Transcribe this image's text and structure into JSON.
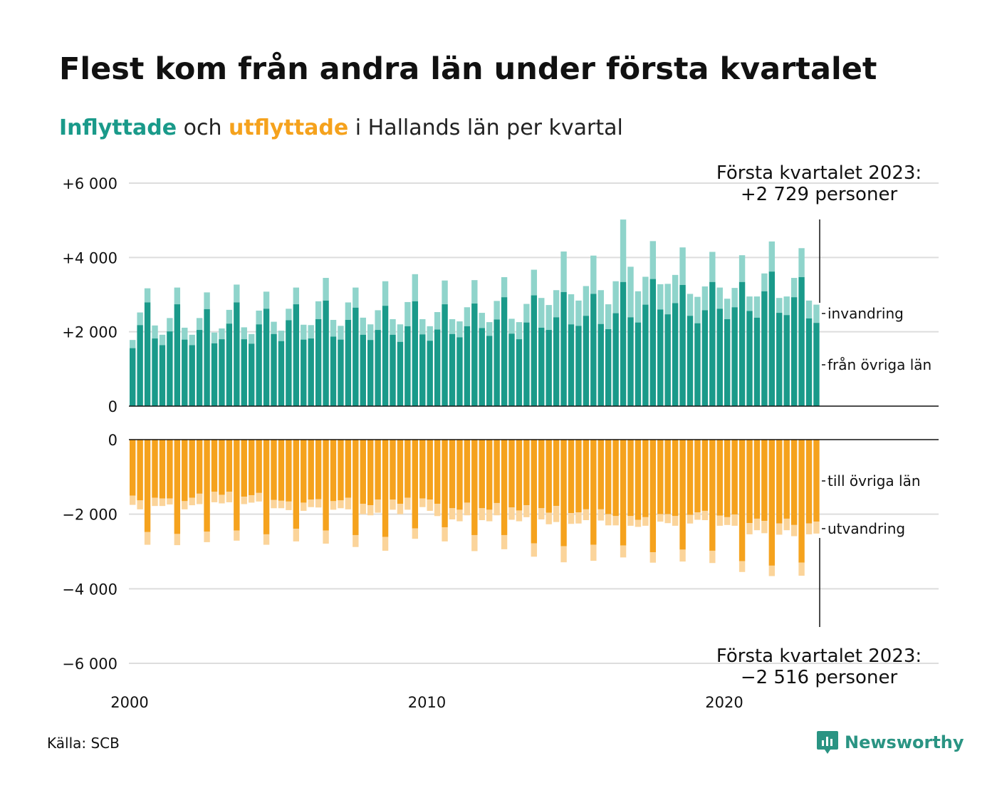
{
  "title": "Flest kom från andra län under första kvartalet",
  "subtitle": {
    "in_word": "Inflyttade",
    "mid": " och ",
    "out_word": "utflyttade",
    "rest": " i Hallands län per kvartal"
  },
  "source": "Källa: SCB",
  "brand": "Newsworthy",
  "colors": {
    "inflyttade_dark": "#1a9a8a",
    "inflyttade_light": "#8fd4cb",
    "utflyttade_dark": "#f5a21d",
    "utflyttade_light": "#fbd49a",
    "grid": "#dddddd",
    "brand": "#2a9483"
  },
  "chart_data": {
    "type": "bar",
    "stacked": true,
    "x_start": 2000,
    "x_end": 2023,
    "quarters_per_year": 4,
    "x_ticks": [
      "2000",
      "2010",
      "2020"
    ],
    "top_panel": {
      "ylim": [
        0,
        6000
      ],
      "y_ticks": [
        "0",
        "+2 000",
        "+4 000",
        "+6 000"
      ],
      "series": [
        {
          "name": "från övriga län",
          "values": [
            1560,
            2180,
            2790,
            1820,
            1640,
            2010,
            2740,
            1790,
            1640,
            2050,
            2610,
            1690,
            1800,
            2220,
            2790,
            1800,
            1680,
            2200,
            2620,
            1940,
            1750,
            2310,
            2740,
            1790,
            1820,
            2340,
            2840,
            1870,
            1790,
            2320,
            2650,
            1920,
            1780,
            2050,
            2700,
            1920,
            1730,
            2150,
            2820,
            1930,
            1760,
            2060,
            2740,
            1940,
            1850,
            2150,
            2760,
            2100,
            1890,
            2330,
            2930,
            1950,
            1800,
            2250,
            2980,
            2110,
            2050,
            2390,
            3070,
            2200,
            2160,
            2430,
            3020,
            2210,
            2070,
            2500,
            3340,
            2390,
            2250,
            2730,
            3420,
            2600,
            2470,
            2770,
            3260,
            2430,
            2230,
            2580,
            3340,
            2620,
            2340,
            2660,
            3340,
            2560,
            2380,
            3090,
            3620,
            2510,
            2450,
            2930,
            3470,
            2360,
            2240
          ]
        },
        {
          "name": "invandring",
          "values": [
            220,
            340,
            380,
            350,
            280,
            360,
            450,
            320,
            280,
            320,
            450,
            290,
            290,
            370,
            480,
            320,
            260,
            370,
            460,
            330,
            280,
            310,
            450,
            400,
            360,
            480,
            610,
            450,
            370,
            470,
            540,
            460,
            420,
            530,
            660,
            420,
            470,
            650,
            730,
            410,
            390,
            470,
            640,
            400,
            430,
            510,
            630,
            410,
            370,
            500,
            540,
            400,
            460,
            500,
            690,
            800,
            670,
            730,
            1090,
            810,
            680,
            800,
            1030,
            910,
            670,
            860,
            1680,
            1360,
            840,
            750,
            1020,
            680,
            820,
            760,
            1010,
            590,
            710,
            640,
            810,
            570,
            550,
            520,
            720,
            390,
            570,
            480,
            810,
            400,
            500,
            520,
            780,
            480,
            490
          ]
        }
      ],
      "annotation": [
        "Första kvartalet 2023:",
        "+2 729 personer"
      ]
    },
    "bottom_panel": {
      "ylim": [
        -6000,
        0
      ],
      "y_ticks": [
        "0",
        "−2 000",
        "−4 000",
        "−6 000"
      ],
      "series": [
        {
          "name": "till övriga län",
          "values": [
            -1500,
            -1630,
            -2480,
            -1560,
            -1580,
            -1580,
            -2530,
            -1650,
            -1560,
            -1450,
            -2470,
            -1400,
            -1480,
            -1400,
            -2440,
            -1530,
            -1490,
            -1430,
            -2540,
            -1620,
            -1640,
            -1660,
            -2390,
            -1690,
            -1610,
            -1600,
            -2440,
            -1650,
            -1630,
            -1560,
            -2560,
            -1720,
            -1760,
            -1610,
            -2610,
            -1610,
            -1720,
            -1560,
            -2380,
            -1580,
            -1610,
            -1720,
            -2350,
            -1840,
            -1880,
            -1690,
            -2560,
            -1840,
            -1880,
            -1700,
            -2560,
            -1820,
            -1900,
            -1760,
            -2780,
            -1840,
            -1960,
            -1780,
            -2860,
            -1970,
            -1950,
            -1870,
            -2820,
            -1870,
            -2000,
            -2050,
            -2840,
            -2050,
            -2150,
            -2080,
            -3020,
            -2000,
            -2000,
            -2050,
            -2950,
            -2020,
            -1950,
            -1910,
            -2980,
            -2040,
            -2080,
            -2010,
            -3260,
            -2240,
            -2120,
            -2180,
            -3380,
            -2250,
            -2120,
            -2290,
            -3300,
            -2250,
            -2200
          ]
        },
        {
          "name": "utvandring",
          "values": [
            -250,
            -240,
            -340,
            -220,
            -200,
            -160,
            -300,
            -220,
            -200,
            -280,
            -280,
            -280,
            -230,
            -280,
            -270,
            -200,
            -200,
            -230,
            -280,
            -220,
            -200,
            -230,
            -340,
            -220,
            -200,
            -220,
            -350,
            -230,
            -210,
            -310,
            -320,
            -280,
            -270,
            -350,
            -370,
            -270,
            -280,
            -320,
            -280,
            -230,
            -300,
            -330,
            -380,
            -300,
            -310,
            -340,
            -430,
            -320,
            -310,
            -330,
            -380,
            -330,
            -290,
            -320,
            -360,
            -300,
            -310,
            -430,
            -430,
            -290,
            -300,
            -290,
            -430,
            -300,
            -300,
            -250,
            -320,
            -260,
            -190,
            -230,
            -280,
            -200,
            -240,
            -260,
            -320,
            -230,
            -200,
            -250,
            -330,
            -270,
            -210,
            -300,
            -290,
            -300,
            -310,
            -330,
            -280,
            -300,
            -310,
            -300,
            -350,
            -290,
            -320
          ]
        }
      ],
      "annotation": [
        "Första kvartalet 2023:",
        "−2 516 personer"
      ]
    }
  }
}
